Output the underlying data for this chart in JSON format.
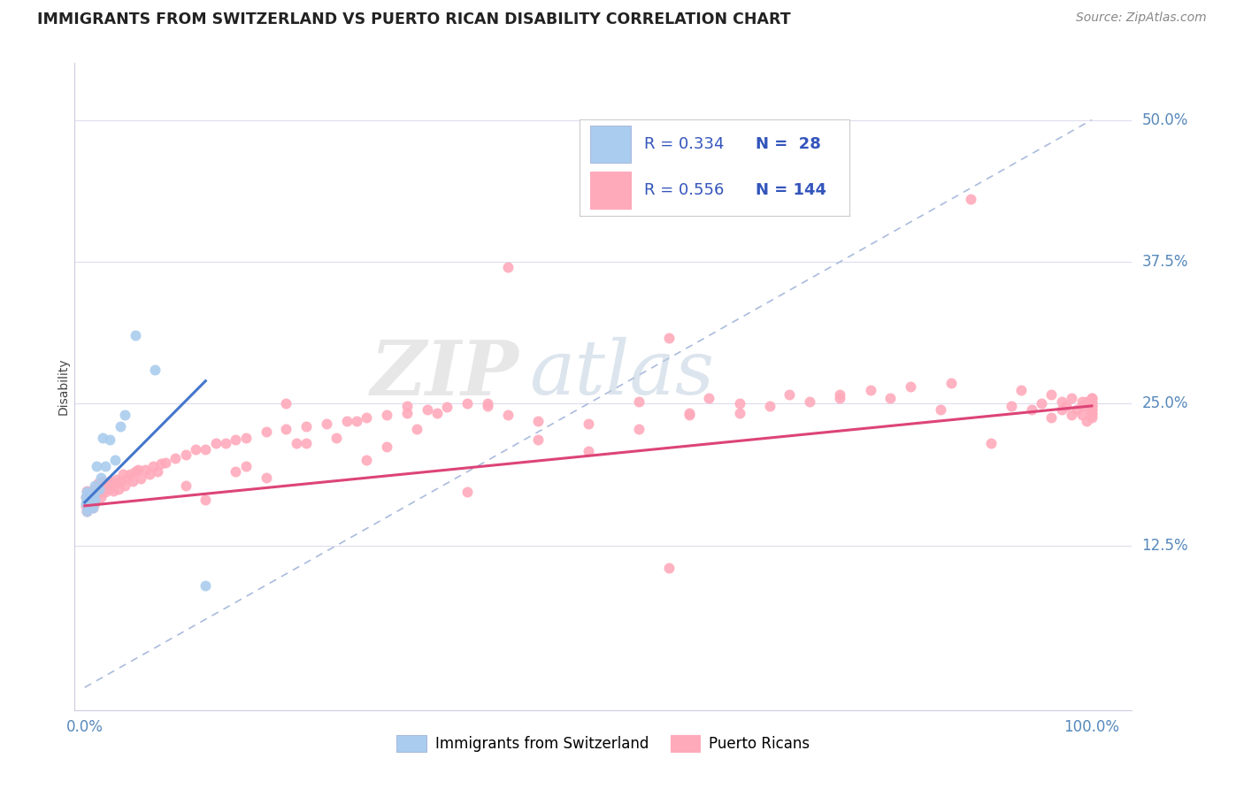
{
  "title": "IMMIGRANTS FROM SWITZERLAND VS PUERTO RICAN DISABILITY CORRELATION CHART",
  "source": "Source: ZipAtlas.com",
  "ylabel": "Disability",
  "title_color": "#222222",
  "title_fontsize": 12.5,
  "source_color": "#888888",
  "tick_label_color": "#5588bb",
  "watermark_zip": "ZIP",
  "watermark_atlas": "atlas",
  "legend_r1": "R = 0.334",
  "legend_n1": "N =  28",
  "legend_r2": "R = 0.556",
  "legend_n2": "N = 144",
  "legend_color": "#3355bb",
  "legend_fontsize": 13,
  "scatter_blue_color": "#aaccee",
  "scatter_pink_color": "#ffaabb",
  "scatter_blue_edge": "none",
  "scatter_pink_edge": "none",
  "scatter_size": 75,
  "trend_blue_color": "#4477cc",
  "trend_pink_color": "#dd4477",
  "ref_line_color": "#aabbdd",
  "background_color": "#ffffff",
  "grid_color": "#ddddee",
  "ylabel_color": "#444444",
  "bottom_legend_label1": "Immigrants from Switzerland",
  "bottom_legend_label2": "Puerto Ricans"
}
